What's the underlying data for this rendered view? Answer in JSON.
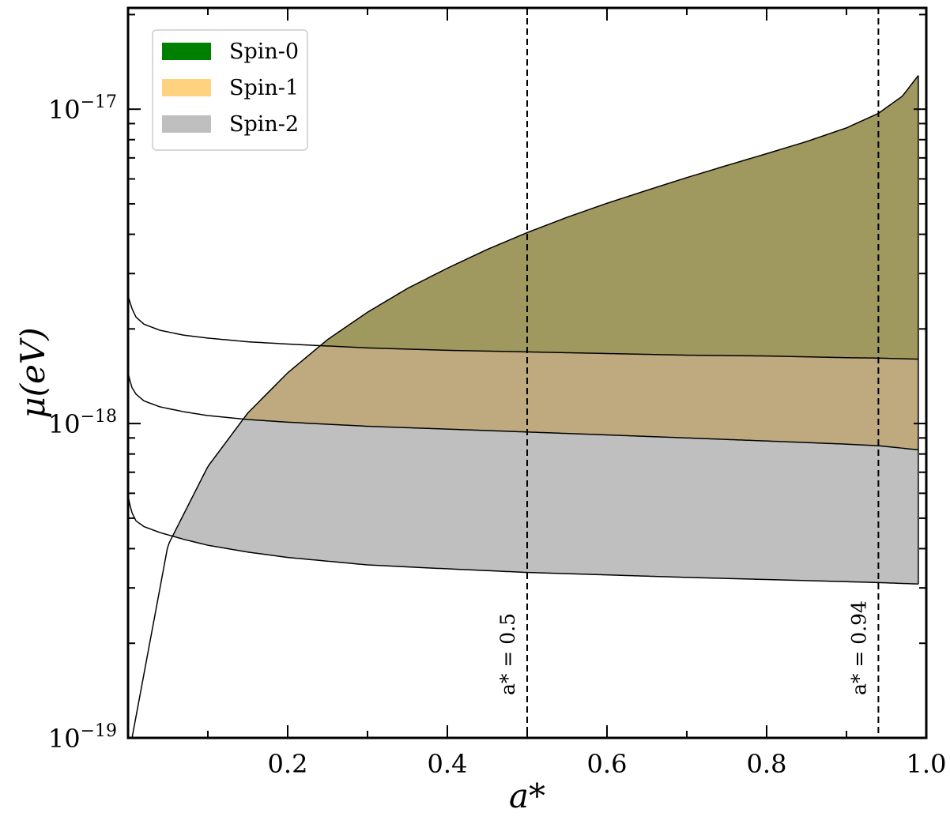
{
  "chart_data": {
    "type": "area",
    "xlabel": "a*",
    "ylabel": "μ(eV)",
    "xlim": [
      0.0,
      1.0
    ],
    "ylim": [
      1e-19,
      2.1e-17
    ],
    "yscale": "log",
    "grid": false,
    "legend_position": "top-left",
    "x_ticks": [
      {
        "value": 0.2,
        "label": "0.2"
      },
      {
        "value": 0.4,
        "label": "0.4"
      },
      {
        "value": 0.6,
        "label": "0.6"
      },
      {
        "value": 0.8,
        "label": "0.8"
      },
      {
        "value": 1.0,
        "label": "1.0"
      }
    ],
    "y_ticks": [
      {
        "value": 1e-19,
        "base": "10",
        "exp": "−19"
      },
      {
        "value": 1e-18,
        "base": "10",
        "exp": "−18"
      },
      {
        "value": 1e-17,
        "base": "10",
        "exp": "−17"
      }
    ],
    "series": [
      {
        "name": "Spin-0",
        "color": "#008000",
        "opacity": 0.5,
        "lower_curve": "spin0"
      },
      {
        "name": "Spin-1",
        "color": "#ffa500",
        "opacity": 0.5,
        "lower_curve": "spin1"
      },
      {
        "name": "Spin-2",
        "color": "#808080",
        "opacity": 0.5,
        "lower_curve": "spin2"
      }
    ],
    "upper_curve": {
      "x": [
        0.005,
        0.05,
        0.1,
        0.15,
        0.2,
        0.25,
        0.3,
        0.35,
        0.4,
        0.45,
        0.5,
        0.55,
        0.6,
        0.65,
        0.7,
        0.75,
        0.8,
        0.85,
        0.9,
        0.94,
        0.97,
        0.99,
        1.0
      ],
      "y": [
        1e-19,
        4.1e-19,
        7.3e-19,
        1.08e-18,
        1.45e-18,
        1.85e-18,
        2.26e-18,
        2.69e-18,
        3.12e-18,
        3.58e-18,
        4.05e-18,
        4.53e-18,
        5.02e-18,
        5.52e-18,
        6.06e-18,
        6.62e-18,
        7.22e-18,
        7.89e-18,
        8.72e-18,
        9.7e-18,
        1.1e-17,
        1.28e-17,
        1.45e-17
      ]
    },
    "lower_curves": {
      "spin0": {
        "x": [
          0.0,
          0.002,
          0.005,
          0.01,
          0.02,
          0.04,
          0.07,
          0.1,
          0.15,
          0.2,
          0.3,
          0.4,
          0.5,
          0.6,
          0.7,
          0.8,
          0.9,
          0.94,
          1.0
        ],
        "y": [
          2.55e-18,
          2.45e-18,
          2.32e-18,
          2.18e-18,
          2.07e-18,
          1.98e-18,
          1.91e-18,
          1.87e-18,
          1.82e-18,
          1.79e-18,
          1.74e-18,
          1.71e-18,
          1.69e-18,
          1.67e-18,
          1.65e-18,
          1.64e-18,
          1.62e-18,
          1.615e-18,
          1.6e-18
        ]
      },
      "spin1": {
        "x": [
          0.0,
          0.002,
          0.005,
          0.01,
          0.02,
          0.04,
          0.07,
          0.1,
          0.15,
          0.2,
          0.3,
          0.4,
          0.5,
          0.6,
          0.7,
          0.8,
          0.9,
          0.94,
          1.0
        ],
        "y": [
          1.45e-18,
          1.38e-18,
          1.3e-18,
          1.24e-18,
          1.18e-18,
          1.13e-18,
          1.09e-18,
          1.06e-18,
          1.03e-18,
          1.01e-18,
          9.8e-19,
          9.6e-19,
          9.4e-19,
          9.2e-19,
          9e-19,
          8.8e-19,
          8.6e-19,
          8.5e-19,
          8.2e-19
        ]
      },
      "spin2": {
        "x": [
          0.0,
          0.002,
          0.005,
          0.01,
          0.02,
          0.04,
          0.07,
          0.1,
          0.15,
          0.2,
          0.3,
          0.4,
          0.5,
          0.6,
          0.7,
          0.8,
          0.9,
          0.94,
          1.0
        ],
        "y": [
          5.9e-19,
          5.55e-19,
          5.2e-19,
          4.9e-19,
          4.7e-19,
          4.5e-19,
          4.28e-19,
          4.1e-19,
          3.9e-19,
          3.75e-19,
          3.55e-19,
          3.45e-19,
          3.36e-19,
          3.3e-19,
          3.24e-19,
          3.19e-19,
          3.14e-19,
          3.12e-19,
          3.08e-19
        ]
      }
    },
    "vertical_lines": [
      {
        "x": 0.5,
        "label": "a* = 0.5",
        "style": "dashed"
      },
      {
        "x": 0.94,
        "label": "a* = 0.94",
        "style": "dashed"
      }
    ]
  }
}
